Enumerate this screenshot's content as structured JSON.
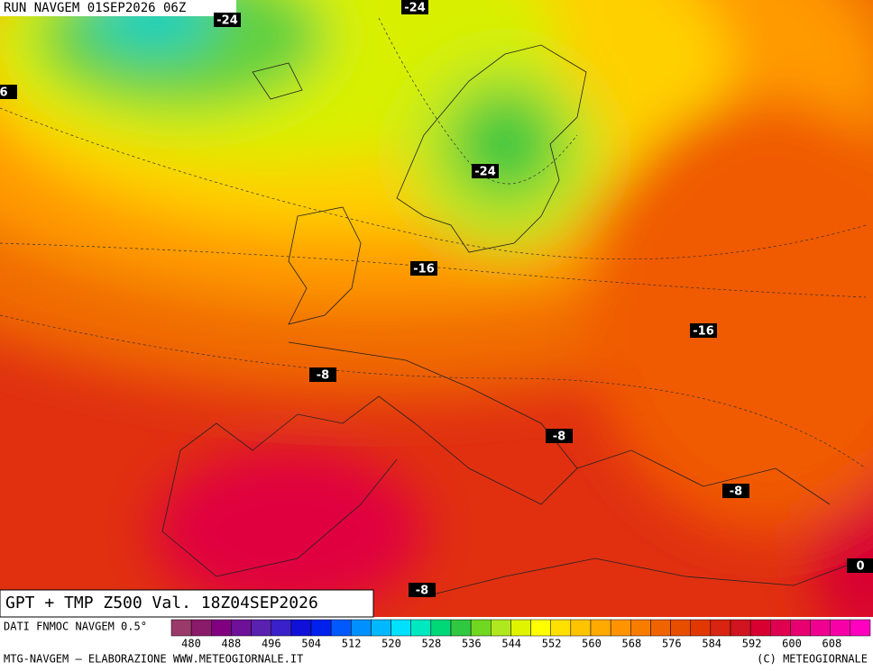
{
  "header": {
    "run": "RUN NAVGEM 01SEP2026 06Z"
  },
  "map_labels": [
    "-24",
    "-24",
    "-24",
    "-16",
    "-16",
    "-8",
    "-8",
    "-8",
    "-8",
    "0",
    "6"
  ],
  "title": "GPT + TMP Z500 Val. 18Z04SEP2026",
  "colorbar": {
    "caption": "DATI FNMOC NAVGEM 0.5°",
    "labels": [
      "480",
      "488",
      "496",
      "504",
      "512",
      "520",
      "528",
      "536",
      "544",
      "552",
      "560",
      "568",
      "576",
      "584",
      "592",
      "600",
      "608"
    ],
    "colors": [
      "#9a3a6a",
      "#8a1a6a",
      "#800080",
      "#6e1098",
      "#5a20b0",
      "#3a20c8",
      "#1010d8",
      "#0020ee",
      "#0058ff",
      "#0090ff",
      "#00b8ff",
      "#00e0ff",
      "#00e8c0",
      "#00d878",
      "#30c840",
      "#70d820",
      "#b0e820",
      "#e0f400",
      "#ffff00",
      "#ffe000",
      "#ffc400",
      "#ffaa00",
      "#ff9400",
      "#f87c00",
      "#f06400",
      "#e84e00",
      "#e03800",
      "#d82410",
      "#d01420",
      "#d80030",
      "#e00050",
      "#e80070",
      "#f00090",
      "#f800a8",
      "#ff00c0"
    ]
  },
  "footer": {
    "left": "MTG-NAVGEM – ELABORAZIONE WWW.METEOGIORNALE.IT",
    "right": "(C) METEOGIORNALE"
  }
}
